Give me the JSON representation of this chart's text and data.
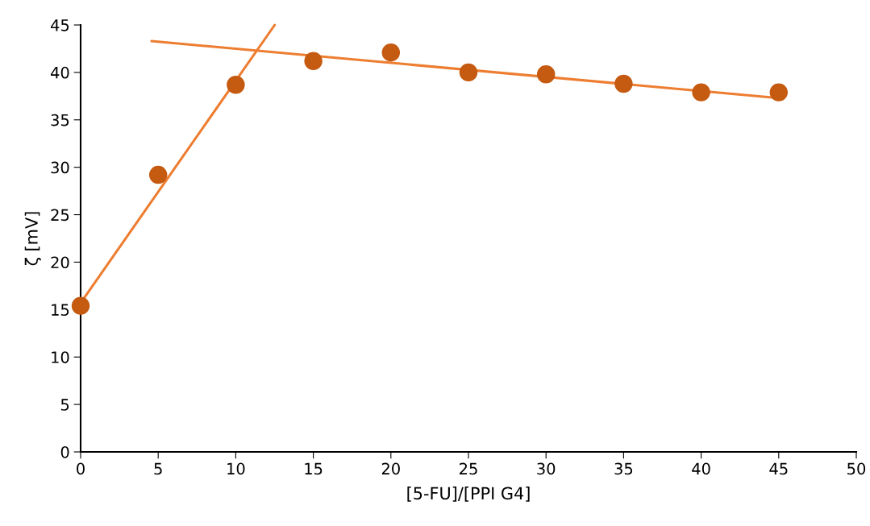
{
  "chart_data": {
    "type": "scatter",
    "xlabel": "[5-FU]/[PPI G4]",
    "ylabel": "ζ [mV]",
    "xlim": [
      0,
      50
    ],
    "ylim": [
      0,
      45
    ],
    "xticks": [
      0,
      5,
      10,
      15,
      20,
      25,
      30,
      35,
      40,
      45,
      50
    ],
    "yticks": [
      0,
      5,
      10,
      15,
      20,
      25,
      30,
      35,
      40,
      45
    ],
    "grid": false,
    "legend": false,
    "marker": "circle",
    "series": [
      {
        "type": "line",
        "color": "#ed7d31",
        "x": [
          0,
          12.51
        ],
        "values": [
          15.7,
          45
        ],
        "marker": "none"
      },
      {
        "type": "line",
        "color": "#ed7d31",
        "x": [
          4.57,
          45
        ],
        "values": [
          43.3,
          37.3
        ],
        "marker": "none"
      },
      {
        "color": "#c55a11",
        "x": [
          0,
          5,
          10,
          15,
          20,
          25,
          30,
          35,
          40,
          45
        ],
        "values": [
          15.4,
          29.2,
          38.7,
          41.2,
          42.1,
          40.0,
          39.8,
          38.8,
          37.9,
          37.9
        ]
      }
    ]
  }
}
